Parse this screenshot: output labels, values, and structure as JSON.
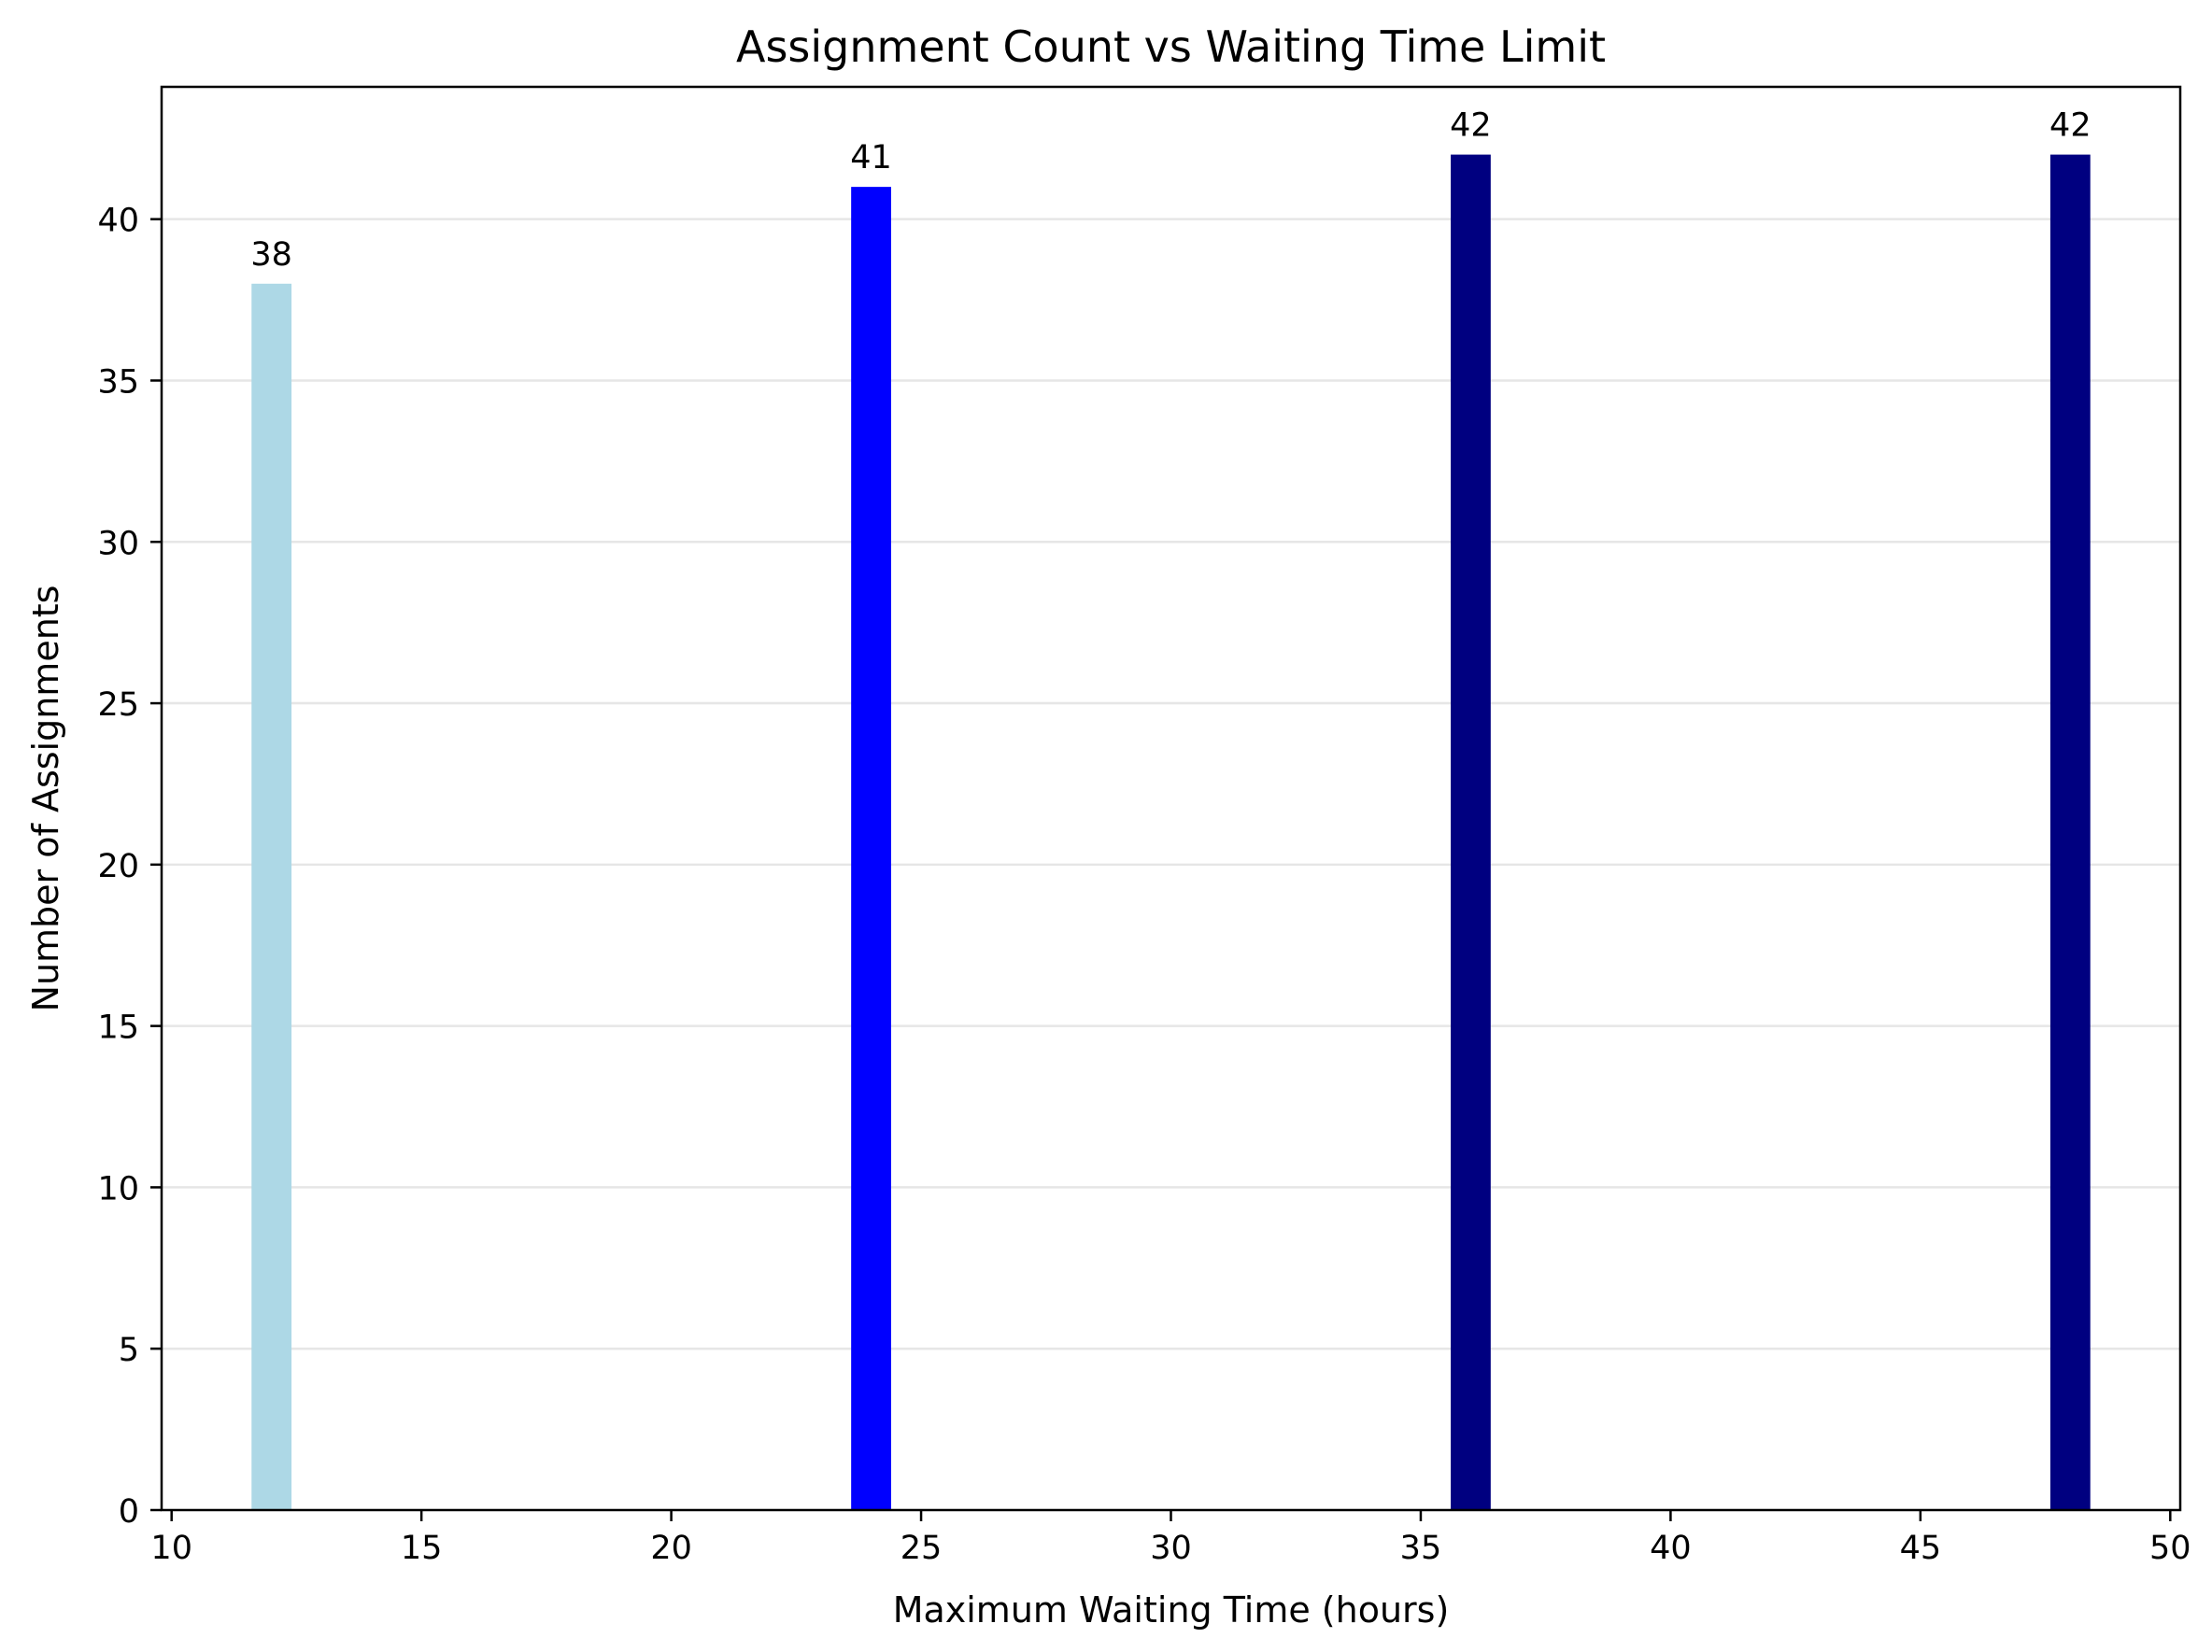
{
  "chart_data": {
    "type": "bar",
    "title": "Assignment Count vs Waiting Time Limit",
    "xlabel": "Maximum Waiting Time (hours)",
    "ylabel": "Number of Assignments",
    "x": [
      12,
      24,
      36,
      48
    ],
    "values": [
      38,
      41,
      42,
      42
    ],
    "bar_labels": [
      "38",
      "41",
      "42",
      "42"
    ],
    "bar_colors": [
      "#add8e6",
      "#0000ff",
      "#000080",
      "#000080"
    ],
    "bar_width": 0.8,
    "xlim": [
      9.8,
      50.2
    ],
    "ylim": [
      0,
      44.1
    ],
    "xticks": [
      10,
      15,
      20,
      25,
      30,
      35,
      40,
      45,
      50
    ],
    "yticks": [
      0,
      5,
      10,
      15,
      20,
      25,
      30,
      35,
      40
    ],
    "grid": {
      "axis": "y",
      "color": "#e6e6e6"
    },
    "legend": null
  }
}
